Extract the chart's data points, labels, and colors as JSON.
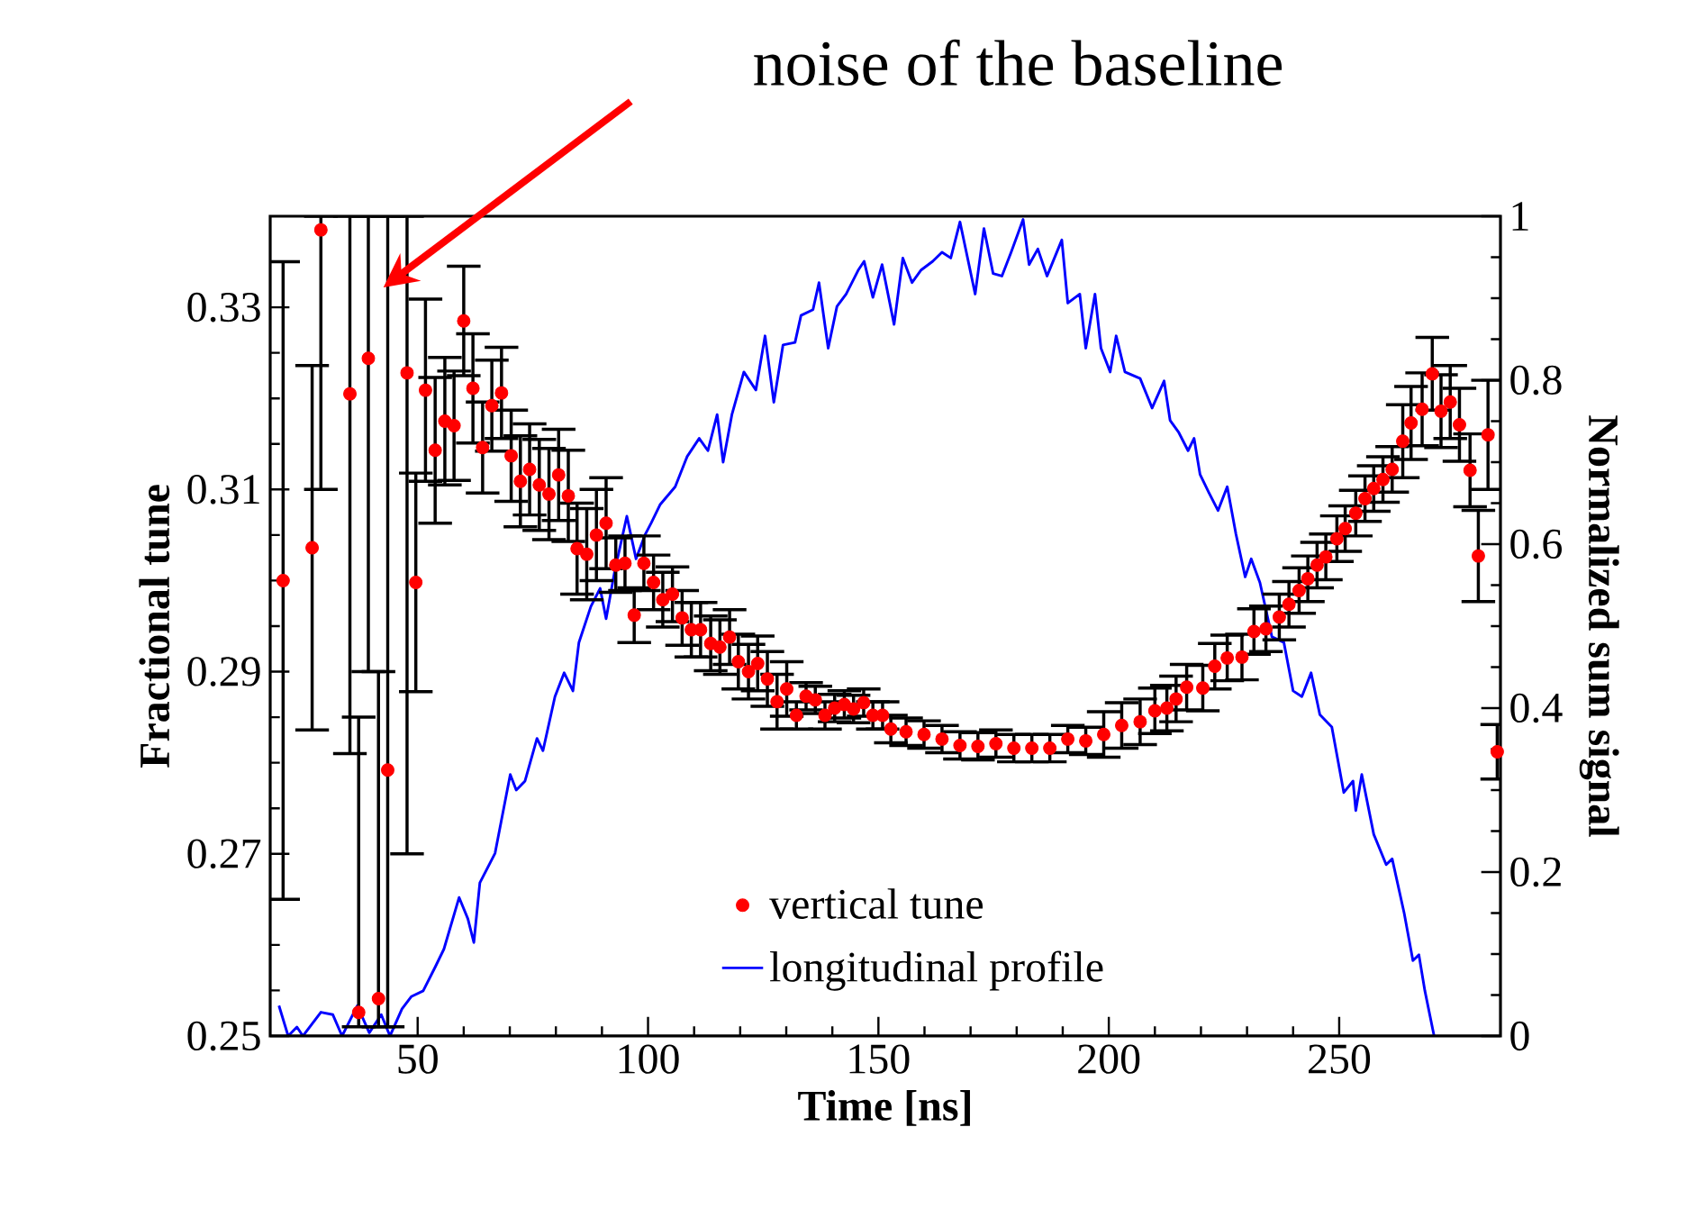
{
  "chart_data": {
    "type": "scatter",
    "xlabel": "Time [ns]",
    "ylabel": "Fractional tune",
    "y2label": "Normalized sum signal",
    "xlim": [
      18,
      285
    ],
    "xticks": [
      50,
      100,
      150,
      200,
      250
    ],
    "ylim": [
      0.25,
      0.34
    ],
    "yticks": [
      0.25,
      0.27,
      0.29,
      0.31,
      0.33
    ],
    "y2lim": [
      0,
      1
    ],
    "y2ticks": [
      0,
      0.2,
      0.4,
      0.6,
      0.8,
      1
    ],
    "legend": "bottom",
    "annotations": [
      "noise of the baseline"
    ],
    "series": [
      {
        "name": "vertical tune",
        "marker": "circle",
        "color": "#ff0000",
        "x": [
          20.8,
          27.1,
          29.0,
          35.3,
          37.2,
          39.3,
          41.5,
          43.5,
          47.7,
          49.6,
          51.7,
          53.8,
          55.9,
          57.9,
          60.0,
          62.0,
          64.1,
          66.1,
          68.2,
          70.3,
          72.3,
          74.3,
          76.4,
          78.5,
          80.6,
          82.7,
          84.6,
          86.7,
          88.8,
          90.9,
          93.0,
          95.0,
          97.0,
          99.1,
          101.2,
          103.2,
          105.3,
          107.4,
          109.4,
          111.4,
          113.6,
          115.6,
          117.7,
          119.6,
          121.8,
          123.8,
          125.9,
          128.0,
          130.1,
          132.2,
          134.3,
          136.3,
          138.4,
          140.5,
          142.6,
          144.6,
          146.8,
          148.8,
          150.9,
          152.7,
          156.0,
          159.9,
          163.8,
          167.7,
          171.6,
          175.5,
          179.4,
          183.3,
          187.2,
          191.1,
          195.0,
          198.9,
          202.8,
          206.8,
          210.0,
          212.6,
          214.6,
          216.9,
          220.4,
          223.0,
          225.7,
          228.9,
          231.5,
          234.1,
          237.0,
          239.1,
          241.3,
          243.2,
          245.2,
          247.1,
          249.5,
          251.3,
          253.6,
          255.6,
          257.5,
          259.5,
          261.5,
          263.8,
          265.6,
          268.0,
          270.2,
          272.1,
          274.1,
          276.1,
          278.4,
          280.2,
          282.3,
          284.3
        ],
        "values": [
          0.3,
          0.3036,
          0.3385,
          0.3205,
          0.2526,
          0.3244,
          0.2541,
          0.2792,
          0.3228,
          0.2998,
          0.3209,
          0.3143,
          0.3175,
          0.317,
          0.3285,
          0.3211,
          0.3146,
          0.3192,
          0.3206,
          0.3137,
          0.3109,
          0.3122,
          0.3105,
          0.3095,
          0.3116,
          0.3093,
          0.3035,
          0.3029,
          0.305,
          0.3063,
          0.3017,
          0.3019,
          0.2962,
          0.3019,
          0.2998,
          0.2979,
          0.2985,
          0.2959,
          0.2946,
          0.2946,
          0.2931,
          0.2927,
          0.2938,
          0.2911,
          0.29,
          0.2909,
          0.2892,
          0.2867,
          0.2881,
          0.2852,
          0.2873,
          0.2869,
          0.2852,
          0.286,
          0.2864,
          0.2859,
          0.2866,
          0.2852,
          0.2852,
          0.2837,
          0.2834,
          0.2831,
          0.2826,
          0.2819,
          0.2818,
          0.2821,
          0.2816,
          0.2816,
          0.2816,
          0.2826,
          0.2824,
          0.2831,
          0.2841,
          0.2845,
          0.2857,
          0.286,
          0.287,
          0.2883,
          0.2882,
          0.2906,
          0.2915,
          0.2916,
          0.2944,
          0.2947,
          0.296,
          0.2974,
          0.2989,
          0.3002,
          0.3017,
          0.3026,
          0.3046,
          0.3057,
          0.3074,
          0.309,
          0.3101,
          0.3111,
          0.3122,
          0.3153,
          0.3173,
          0.3188,
          0.3227,
          0.3186,
          0.3196,
          0.3171,
          0.3121,
          0.3027,
          0.316,
          0.2812
        ],
        "errors": [
          0.035,
          0.02,
          [
            0.31,
            0.34
          ],
          [
            0.281,
            0.34
          ],
          [
            0.251,
            0.285
          ],
          [
            0.29,
            0.34
          ],
          [
            0.251,
            0.29
          ],
          [
            0.251,
            0.34
          ],
          [
            0.27,
            0.34
          ],
          0.012,
          0.01,
          0.008,
          0.007,
          0.006,
          0.006,
          0.006,
          0.005,
          0.005,
          0.005,
          0.005,
          0.005,
          0.005,
          0.005,
          0.005,
          0.005,
          0.005,
          0.005,
          0.005,
          0.005,
          0.005,
          0.003,
          0.003,
          0.003,
          0.003,
          0.003,
          0.003,
          0.003,
          0.003,
          0.003,
          0.003,
          0.003,
          0.003,
          0.003,
          0.003,
          0.003,
          0.003,
          0.003,
          0.003,
          0.003,
          0.0015,
          0.0015,
          0.0015,
          0.0015,
          0.0015,
          0.0015,
          0.0015,
          0.0015,
          0.0015,
          0.0015,
          0.0015,
          0.0015,
          0.0015,
          0.0015,
          0.0015,
          0.0015,
          0.0015,
          0.0015,
          0.0015,
          0.0015,
          0.0015,
          0.0015,
          0.0025,
          0.0025,
          0.0025,
          0.0025,
          0.0025,
          0.0025,
          0.0025,
          0.0025,
          0.0025,
          0.0025,
          0.0025,
          0.0025,
          0.0025,
          0.0025,
          0.0025,
          0.0025,
          0.0025,
          0.0025,
          0.0025,
          0.0025,
          0.0025,
          0.0025,
          0.0025,
          0.0025,
          0.0025,
          0.0025,
          0.004,
          0.004,
          0.004,
          0.004,
          0.004,
          0.004,
          0.004,
          0.004,
          0.005,
          0.006,
          0.003
        ]
      },
      {
        "name": "longitudinal profile",
        "type": "line",
        "axis": "y2",
        "color": "#0000ff",
        "x": [
          19.9,
          21.9,
          23.8,
          25.1,
          29.0,
          31.6,
          33.6,
          36.9,
          39.5,
          42.1,
          44.0,
          46.6,
          48.6,
          51.2,
          53.8,
          55.7,
          59.0,
          60.9,
          62.2,
          63.5,
          66.8,
          70.1,
          71.4,
          73.3,
          75.9,
          77.2,
          79.8,
          81.8,
          83.7,
          85.0,
          87.6,
          89.6,
          90.9,
          92.8,
          95.4,
          97.4,
          99.4,
          100.7,
          102.6,
          105.9,
          108.5,
          111.1,
          113.0,
          115.0,
          116.3,
          118.2,
          120.8,
          123.4,
          125.4,
          127.3,
          129.3,
          131.9,
          133.2,
          135.8,
          137.1,
          139.1,
          141.0,
          143.0,
          145.6,
          146.9,
          148.8,
          150.8,
          153.4,
          155.3,
          157.3,
          159.2,
          161.8,
          163.8,
          165.7,
          167.7,
          171.0,
          172.9,
          174.9,
          176.8,
          178.8,
          181.4,
          182.7,
          184.6,
          186.6,
          189.8,
          191.1,
          193.7,
          195.0,
          197.0,
          198.3,
          200.3,
          201.6,
          203.5,
          206.8,
          209.4,
          212.0,
          213.3,
          215.2,
          217.2,
          218.5,
          219.8,
          221.7,
          223.7,
          225.7,
          227.6,
          229.6,
          230.9,
          232.8,
          235.4,
          238.0,
          240.0,
          241.9,
          243.9,
          245.8,
          248.4,
          251.0,
          253.0,
          253.6,
          254.9,
          257.5,
          260.2,
          261.5,
          264.1,
          266.0,
          267.3,
          268.6,
          270.6
        ],
        "values": [
          0.037,
          0.0,
          0.011,
          0.0,
          0.029,
          0.026,
          0.0,
          0.037,
          0.004,
          0.026,
          0.0,
          0.033,
          0.048,
          0.055,
          0.084,
          0.106,
          0.169,
          0.143,
          0.114,
          0.187,
          0.223,
          0.319,
          0.3,
          0.311,
          0.363,
          0.348,
          0.414,
          0.443,
          0.421,
          0.48,
          0.524,
          0.546,
          0.509,
          0.568,
          0.634,
          0.582,
          0.612,
          0.626,
          0.648,
          0.67,
          0.707,
          0.729,
          0.714,
          0.758,
          0.7,
          0.758,
          0.81,
          0.788,
          0.854,
          0.773,
          0.843,
          0.846,
          0.879,
          0.886,
          0.919,
          0.839,
          0.89,
          0.905,
          0.934,
          0.945,
          0.901,
          0.941,
          0.868,
          0.949,
          0.919,
          0.934,
          0.945,
          0.956,
          0.949,
          0.993,
          0.905,
          0.985,
          0.93,
          0.927,
          0.956,
          0.996,
          0.941,
          0.96,
          0.927,
          0.971,
          0.894,
          0.905,
          0.839,
          0.905,
          0.839,
          0.81,
          0.854,
          0.81,
          0.802,
          0.766,
          0.799,
          0.751,
          0.736,
          0.714,
          0.729,
          0.685,
          0.663,
          0.641,
          0.67,
          0.612,
          0.56,
          0.582,
          0.553,
          0.487,
          0.48,
          0.421,
          0.414,
          0.443,
          0.392,
          0.377,
          0.297,
          0.311,
          0.275,
          0.319,
          0.246,
          0.209,
          0.216,
          0.15,
          0.092,
          0.099,
          0.055,
          0.0
        ]
      }
    ]
  }
}
